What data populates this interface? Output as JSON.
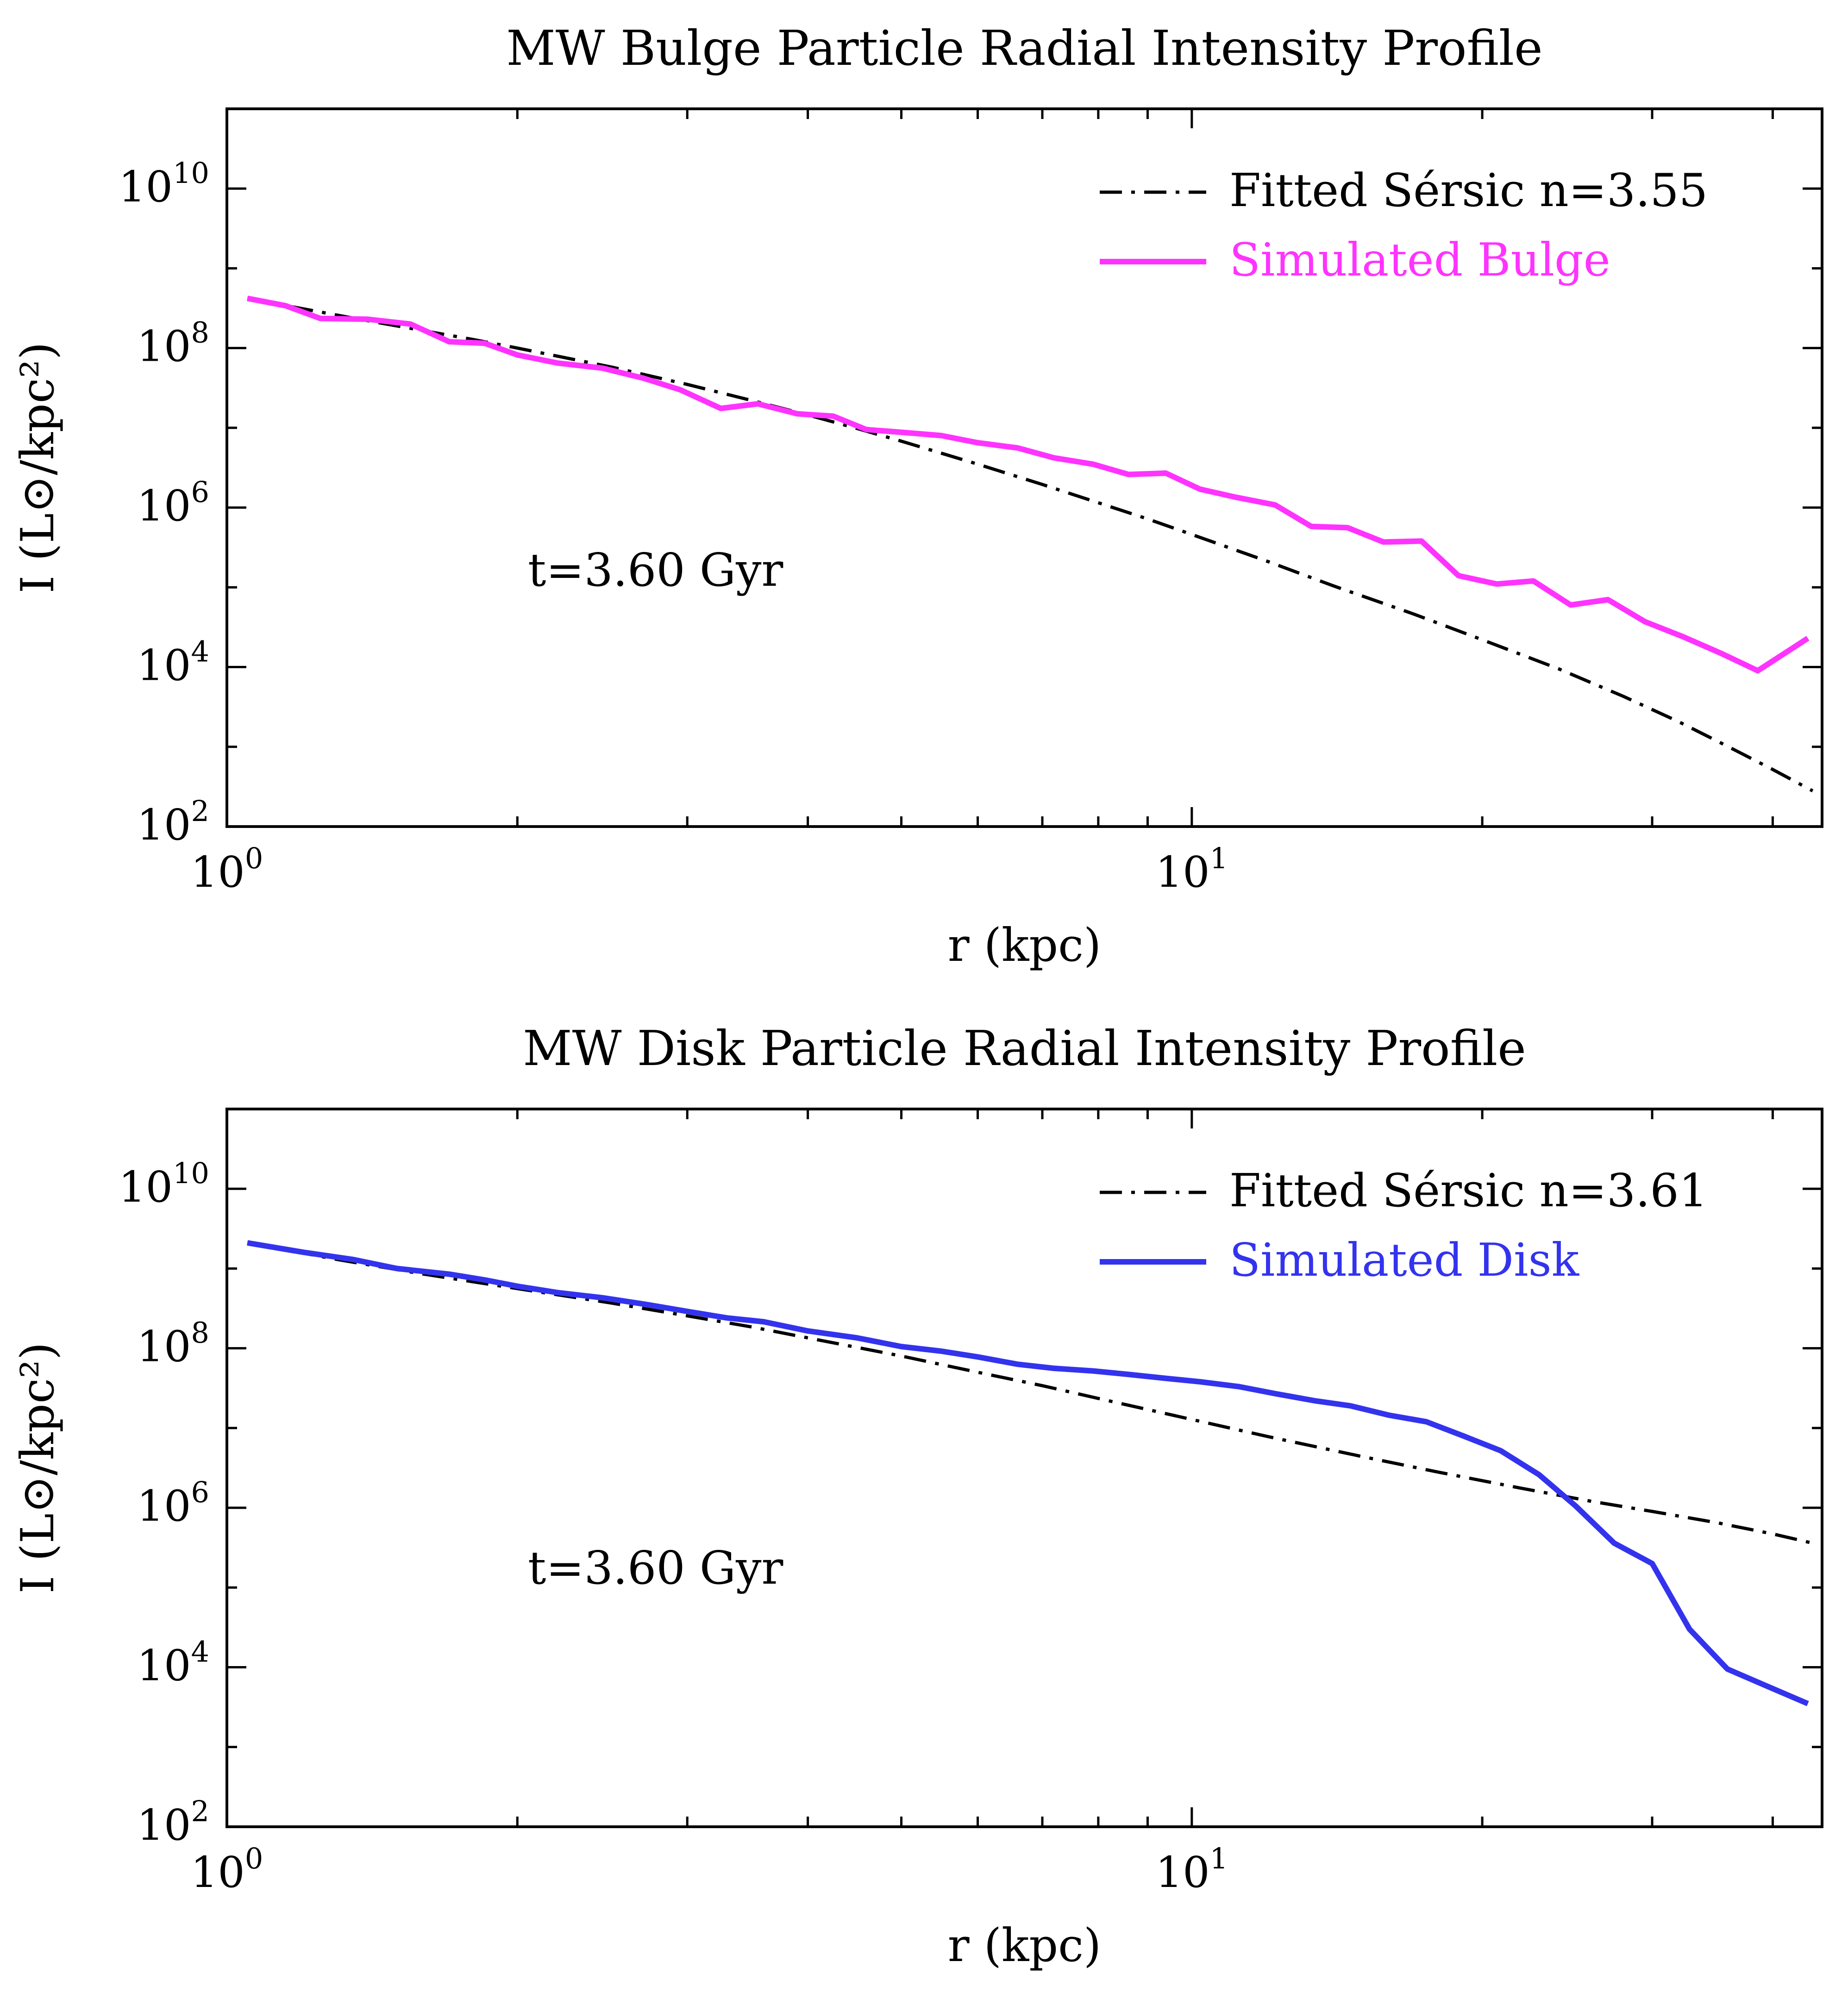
{
  "chart_data": [
    {
      "type": "line",
      "title": "MW Bulge Particle Radial Intensity Profile",
      "xlabel": "r (kpc)",
      "ylabel": "I (L⊙/kpc²)",
      "xscale": "log",
      "yscale": "log",
      "xlim": [
        1,
        45
      ],
      "ylim": [
        100,
        100000000000
      ],
      "x_ticks": [
        {
          "value": 1,
          "base": "10",
          "exp": "0"
        },
        {
          "value": 10,
          "base": "10",
          "exp": "1"
        }
      ],
      "y_ticks": [
        {
          "value": 100,
          "base": "10",
          "exp": "2"
        },
        {
          "value": 10000,
          "base": "10",
          "exp": "4"
        },
        {
          "value": 1000000,
          "base": "10",
          "exp": "6"
        },
        {
          "value": 100000000,
          "base": "10",
          "exp": "8"
        },
        {
          "value": 10000000000,
          "base": "10",
          "exp": "10"
        }
      ],
      "annotation": "t=3.60 Gyr",
      "legend_position": "top-right",
      "series": [
        {
          "name": "Fitted Sérsic n=3.55",
          "color": "#000000",
          "style": "dashdot",
          "x": [
            1.05,
            1.2,
            1.4,
            1.6,
            1.8,
            2.0,
            2.5,
            3.0,
            3.5,
            4.0,
            4.5,
            5.0,
            6.0,
            7.0,
            8.0,
            9.0,
            10.0,
            12.0,
            14.0,
            17.0,
            20.0,
            24.0,
            28.0,
            32.0,
            36.0,
            40.0,
            44.0
          ],
          "y": [
            420000000,
            310000000,
            220000000,
            165000000,
            128000000,
            100000000,
            58000000,
            35000000,
            22000000,
            14500000,
            9800000,
            6800000,
            3500000,
            1950000,
            1150000,
            720000,
            460000,
            210000,
            105000,
            46000,
            22000,
            9500,
            4300,
            2050,
            1000,
            520,
            280
          ]
        },
        {
          "name": "Simulated Bulge",
          "color": "#ff33ff",
          "style": "solid",
          "x": [
            1.05,
            1.15,
            1.25,
            1.4,
            1.55,
            1.7,
            1.85,
            2.0,
            2.2,
            2.45,
            2.7,
            2.95,
            3.25,
            3.55,
            3.9,
            4.25,
            4.6,
            5.0,
            5.5,
            6.0,
            6.6,
            7.2,
            7.9,
            8.6,
            9.4,
            10.2,
            11.1,
            12.2,
            13.3,
            14.5,
            15.8,
            17.3,
            18.9,
            20.7,
            22.6,
            24.7,
            27.0,
            29.5,
            32.3,
            35.3,
            38.6,
            43.5
          ],
          "y": [
            420000000,
            340000000,
            235000000,
            230000000,
            200000000,
            120000000,
            115000000,
            82000000,
            65000000,
            56000000,
            42000000,
            30000000,
            17500000,
            20000000,
            15000000,
            14000000,
            9500000,
            8800000,
            8000000,
            6500000,
            5600000,
            4200000,
            3500000,
            2600000,
            2700000,
            1700000,
            1350000,
            1080000,
            580000,
            560000,
            370000,
            380000,
            140000,
            110000,
            120000,
            60000,
            70000,
            37000,
            24000,
            15000,
            9000,
            23000
          ]
        }
      ]
    },
    {
      "type": "line",
      "title": "MW Disk Particle Radial Intensity Profile",
      "xlabel": "r (kpc)",
      "ylabel": "I (L⊙/kpc²)",
      "xscale": "log",
      "yscale": "log",
      "xlim": [
        1,
        45
      ],
      "ylim": [
        100,
        100000000000
      ],
      "x_ticks": [
        {
          "value": 1,
          "base": "10",
          "exp": "0"
        },
        {
          "value": 10,
          "base": "10",
          "exp": "1"
        }
      ],
      "y_ticks": [
        {
          "value": 100,
          "base": "10",
          "exp": "2"
        },
        {
          "value": 10000,
          "base": "10",
          "exp": "4"
        },
        {
          "value": 1000000,
          "base": "10",
          "exp": "6"
        },
        {
          "value": 100000000,
          "base": "10",
          "exp": "8"
        },
        {
          "value": 10000000000,
          "base": "10",
          "exp": "10"
        }
      ],
      "annotation": "t=3.60 Gyr",
      "legend_position": "top-right",
      "series": [
        {
          "name": "Fitted Sérsic n=3.61",
          "color": "#000000",
          "style": "dashdot",
          "x": [
            1.05,
            1.3,
            1.6,
            2.0,
            2.5,
            3.0,
            3.5,
            4.0,
            5.0,
            6.0,
            7.0,
            8.0,
            10.0,
            12.0,
            15.0,
            18.0,
            22.0,
            26.0,
            30.0,
            35.0,
            40.0,
            44.0
          ],
          "y": [
            2100000000,
            1300000000,
            850000000,
            560000000,
            370000000,
            255000000,
            185000000,
            135000000,
            80000000,
            50000000,
            34000000,
            23500000,
            12800000,
            7800000,
            4400000,
            2800000,
            1750000,
            1200000,
            900000,
            650000,
            470000,
            360000
          ]
        },
        {
          "name": "Simulated Disk",
          "color": "#3333ee",
          "style": "solid",
          "x": [
            1.05,
            1.2,
            1.35,
            1.5,
            1.7,
            1.85,
            2.0,
            2.2,
            2.45,
            2.7,
            3.0,
            3.3,
            3.6,
            4.0,
            4.5,
            5.0,
            5.5,
            6.0,
            6.6,
            7.2,
            7.9,
            8.6,
            9.4,
            10.2,
            11.2,
            12.2,
            13.4,
            14.6,
            16.0,
            17.5,
            19.1,
            20.9,
            22.9,
            25.0,
            27.4,
            30.0,
            32.8,
            35.9,
            39.2,
            43.5
          ],
          "y": [
            2100000000,
            1600000000,
            1300000000,
            1000000000,
            850000000,
            720000000,
            600000000,
            500000000,
            430000000,
            360000000,
            290000000,
            240000000,
            215000000,
            165000000,
            135000000,
            105000000,
            92000000,
            78000000,
            63000000,
            56000000,
            52000000,
            47000000,
            42000000,
            38000000,
            33000000,
            27000000,
            22000000,
            19000000,
            14500000,
            12000000,
            8000000,
            5200000,
            2600000,
            1050000,
            360000,
            200000,
            30000,
            9500,
            6000,
            3500
          ]
        }
      ]
    }
  ]
}
